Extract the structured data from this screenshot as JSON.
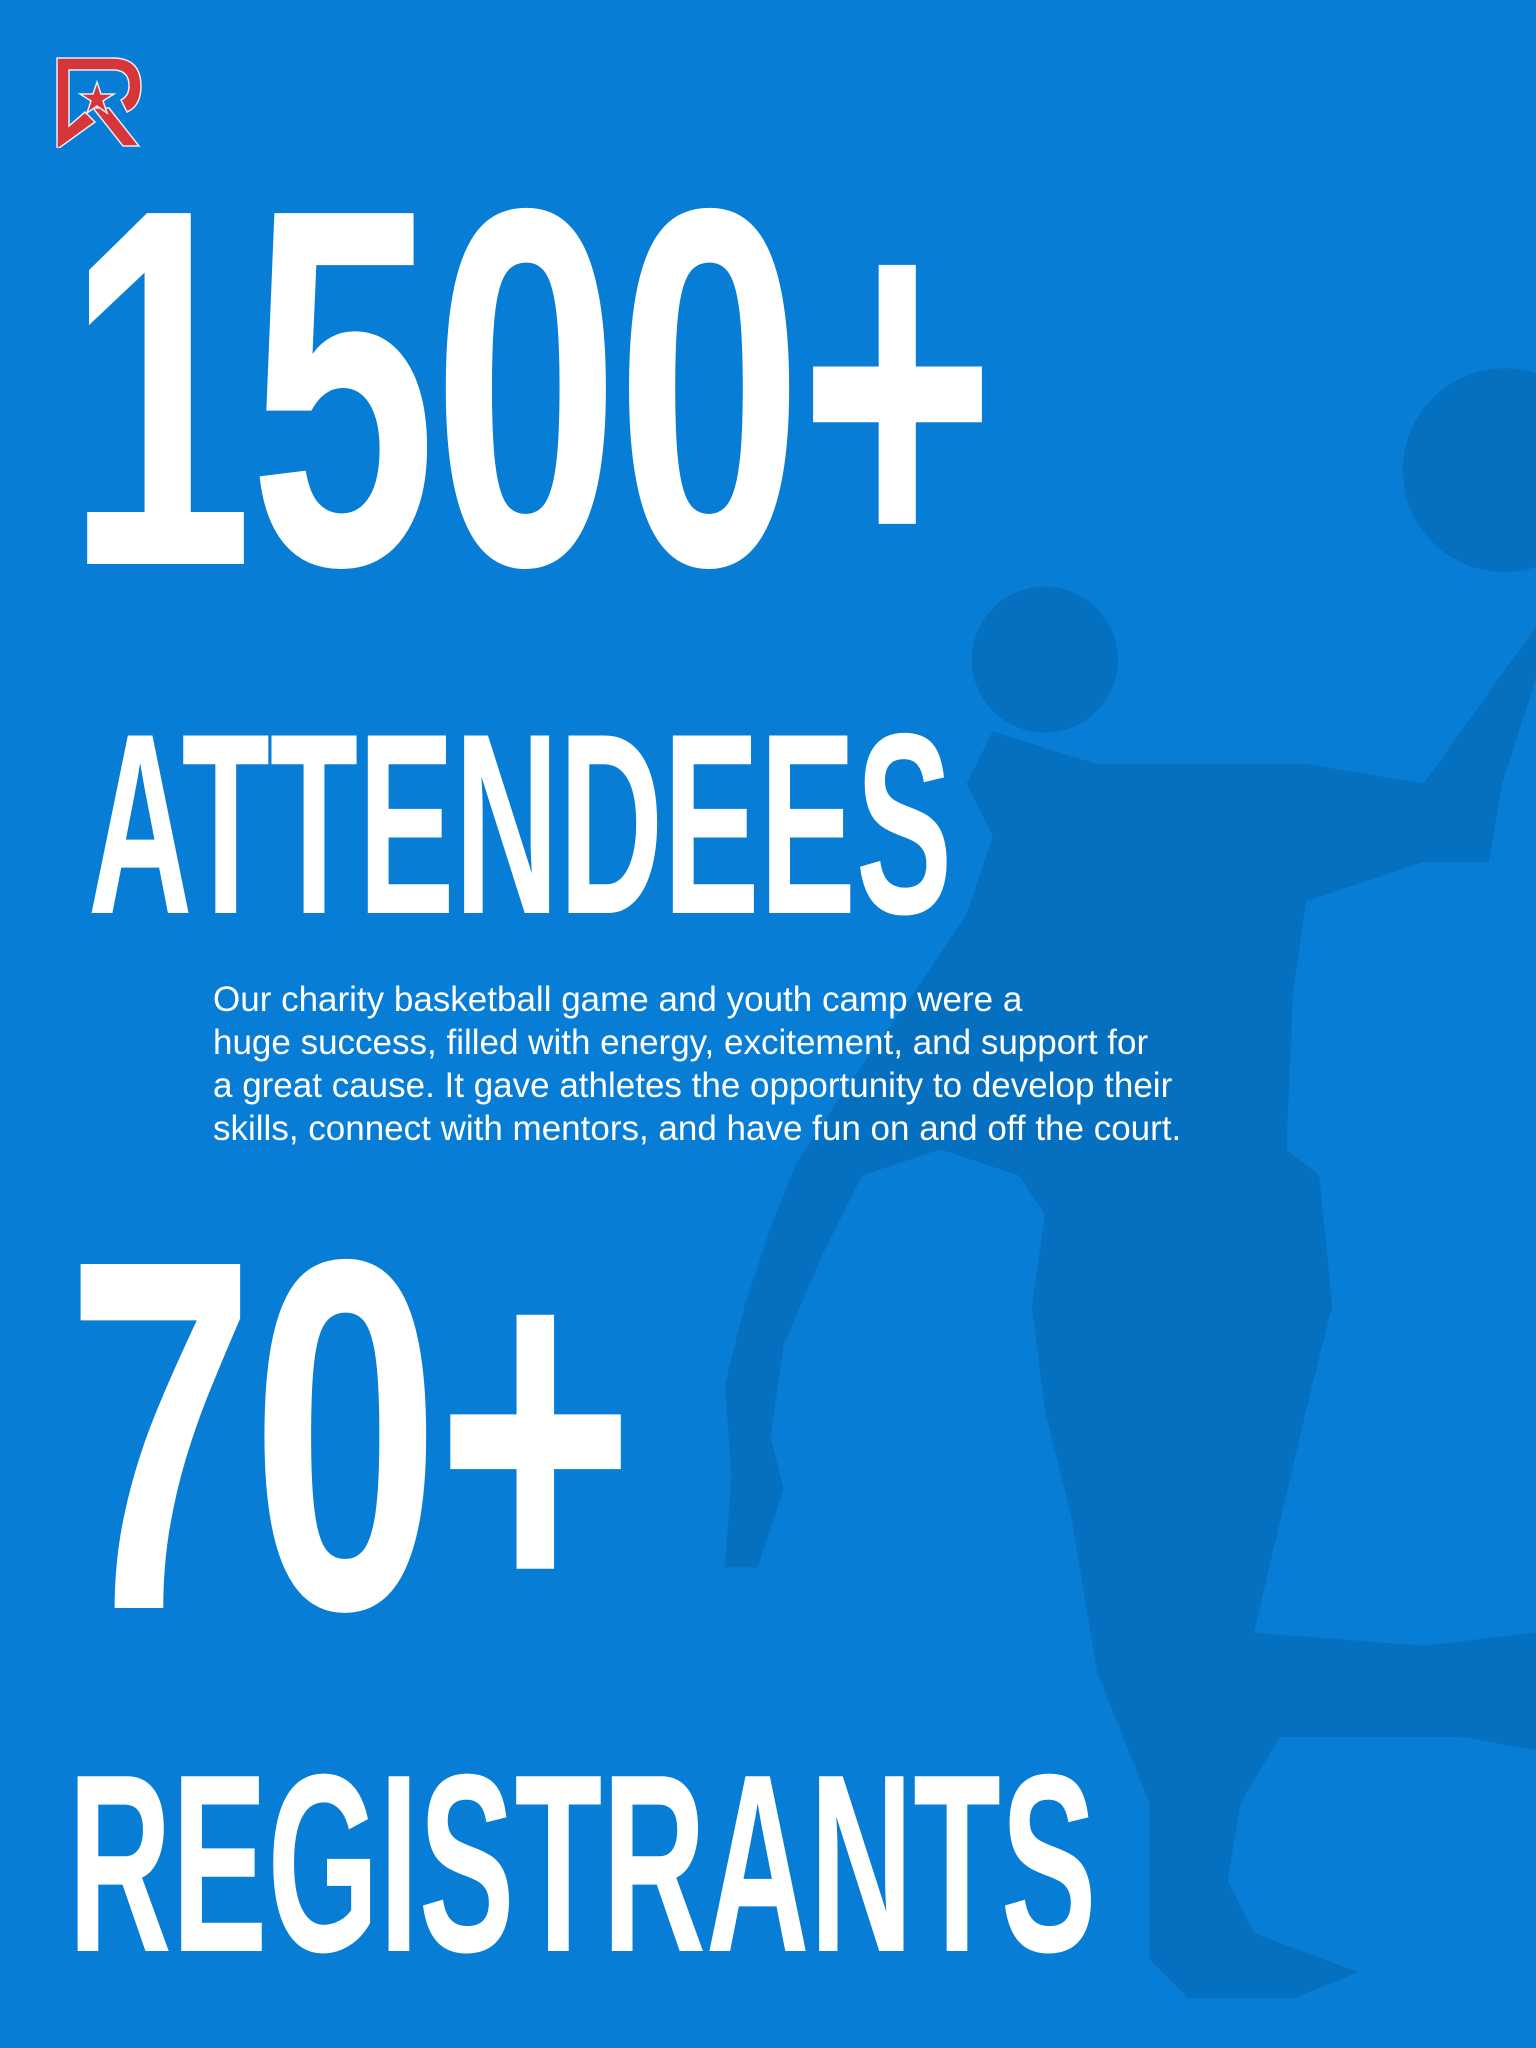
{
  "colors": {
    "background": "#077dd5",
    "silhouette": "#0670c0",
    "text": "#ffffff",
    "logo_red": "#d6363a"
  },
  "logo": {
    "icon": "r-star-logo"
  },
  "stats": [
    {
      "number": "1500+",
      "label": "ATTENDEES"
    },
    {
      "number": "70+",
      "label": "REGISTRANTS"
    }
  ],
  "description": {
    "lines": [
      "Our charity basketball game and youth camp were a",
      "huge success, filled with energy, excitement, and support for",
      "a great cause. It gave athletes the opportunity to develop their",
      "skills, connect with mentors, and have fun on and off the court."
    ]
  }
}
